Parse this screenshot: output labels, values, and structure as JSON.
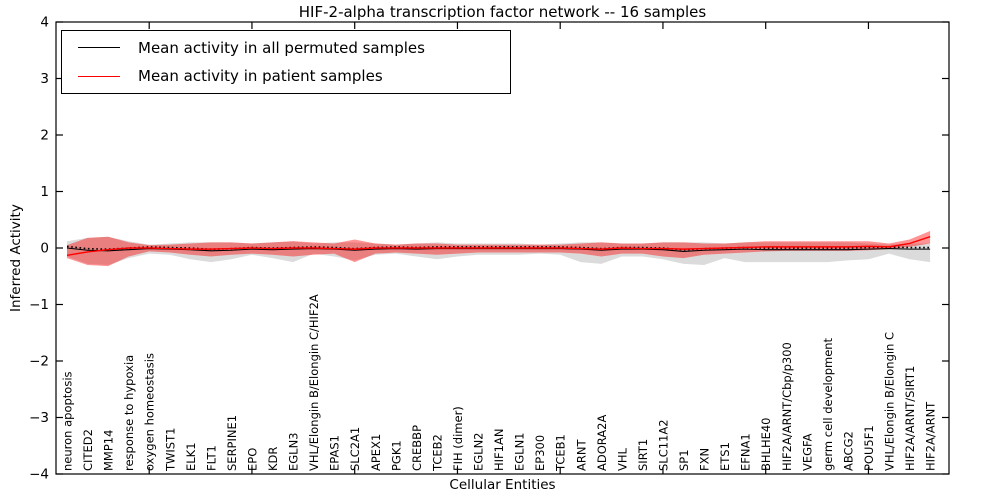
{
  "chart_data": {
    "type": "line",
    "title": "HIF-2-alpha transcription factor network -- 16 samples",
    "xlabel": "Cellular Entities",
    "ylabel": "Inferred Activity",
    "ylim": [
      -4,
      4
    ],
    "yticks": [
      -4,
      -3,
      -2,
      -1,
      0,
      1,
      2,
      3,
      4
    ],
    "grid": false,
    "legend_position": "upper left",
    "categories": [
      "neuron apoptosis",
      "CITED2",
      "MMP14",
      "response to hypoxia",
      "oxygen homeostasis",
      "TWIST1",
      "ELK1",
      "FLT1",
      "SERPINE1",
      "EPO",
      "KDR",
      "EGLN3",
      "VHL/Elongin B/Elongin C/HIF2A",
      "EPAS1",
      "SLC2A1",
      "APEX1",
      "PGK1",
      "CREBBP",
      "TCEB2",
      "FIH (dimer)",
      "EGLN2",
      "HIF1AN",
      "EGLN1",
      "EP300",
      "TCEB1",
      "ARNT",
      "ADORA2A",
      "VHL",
      "SIRT1",
      "SLC11A2",
      "SP1",
      "FXN",
      "ETS1",
      "EFNA1",
      "BHLHE40",
      "HIF2A/ARNT/Cbp/p300",
      "VEGFA",
      "germ cell development",
      "ABCG2",
      "POU5F1",
      "VHL/Elongin B/Elongin C",
      "HIF2A/ARNT/SIRT1",
      "HIF2A/ARNT"
    ],
    "series": [
      {
        "name": "Mean activity in all permuted samples",
        "color": "#000000",
        "line_style": "solid",
        "values": [
          0.0,
          -0.04,
          -0.05,
          -0.03,
          -0.01,
          -0.02,
          -0.03,
          -0.05,
          -0.04,
          -0.02,
          -0.03,
          -0.02,
          -0.01,
          -0.02,
          -0.04,
          -0.02,
          -0.01,
          -0.02,
          -0.01,
          -0.01,
          -0.01,
          -0.01,
          -0.01,
          -0.01,
          -0.01,
          -0.02,
          -0.04,
          -0.02,
          -0.02,
          -0.03,
          -0.06,
          -0.04,
          -0.03,
          -0.02,
          -0.03,
          -0.03,
          -0.03,
          -0.03,
          -0.03,
          -0.02,
          -0.01,
          -0.02,
          -0.02
        ],
        "band_high": [
          0.12,
          0.18,
          0.2,
          0.12,
          0.06,
          0.08,
          0.1,
          0.1,
          0.1,
          0.08,
          0.1,
          0.12,
          0.08,
          0.1,
          0.1,
          0.08,
          0.06,
          0.08,
          0.1,
          0.08,
          0.08,
          0.08,
          0.08,
          0.06,
          0.08,
          0.1,
          0.1,
          0.08,
          0.08,
          0.1,
          0.1,
          0.1,
          0.08,
          0.1,
          0.1,
          0.1,
          0.1,
          0.1,
          0.1,
          0.08,
          0.06,
          0.08,
          0.08
        ],
        "band_low": [
          -0.15,
          -0.28,
          -0.3,
          -0.18,
          -0.1,
          -0.12,
          -0.2,
          -0.25,
          -0.2,
          -0.12,
          -0.18,
          -0.25,
          -0.1,
          -0.15,
          -0.22,
          -0.12,
          -0.1,
          -0.15,
          -0.2,
          -0.15,
          -0.12,
          -0.12,
          -0.12,
          -0.1,
          -0.12,
          -0.25,
          -0.28,
          -0.15,
          -0.15,
          -0.2,
          -0.28,
          -0.3,
          -0.18,
          -0.25,
          -0.25,
          -0.25,
          -0.25,
          -0.25,
          -0.22,
          -0.2,
          -0.1,
          -0.2,
          -0.25
        ],
        "band_fill": "rgba(0,0,0,0.14)"
      },
      {
        "name": "Mean activity in patient samples",
        "color": "#ff0000",
        "line_style": "solid",
        "values": [
          -0.13,
          -0.07,
          -0.03,
          0.0,
          0.0,
          -0.01,
          -0.02,
          -0.02,
          -0.01,
          0.0,
          -0.01,
          0.0,
          0.0,
          -0.01,
          -0.02,
          0.0,
          0.0,
          0.0,
          0.0,
          0.0,
          0.0,
          0.0,
          0.0,
          0.0,
          0.0,
          -0.01,
          -0.02,
          0.0,
          -0.01,
          -0.01,
          -0.02,
          -0.01,
          0.0,
          0.01,
          0.02,
          0.02,
          0.02,
          0.02,
          0.02,
          0.03,
          0.02,
          0.08,
          0.2
        ],
        "band_high": [
          0.05,
          0.18,
          0.2,
          0.1,
          0.05,
          0.06,
          0.08,
          0.1,
          0.1,
          0.08,
          0.1,
          0.12,
          0.1,
          0.08,
          0.15,
          0.08,
          0.06,
          0.08,
          0.08,
          0.06,
          0.06,
          0.06,
          0.06,
          0.06,
          0.06,
          0.08,
          0.1,
          0.08,
          0.08,
          0.1,
          0.1,
          0.08,
          0.08,
          0.1,
          0.12,
          0.12,
          0.12,
          0.12,
          0.12,
          0.12,
          0.08,
          0.15,
          0.3
        ],
        "band_low": [
          -0.18,
          -0.3,
          -0.32,
          -0.15,
          -0.06,
          -0.08,
          -0.12,
          -0.15,
          -0.12,
          -0.1,
          -0.12,
          -0.15,
          -0.12,
          -0.1,
          -0.25,
          -0.1,
          -0.08,
          -0.1,
          -0.12,
          -0.1,
          -0.08,
          -0.08,
          -0.08,
          -0.08,
          -0.08,
          -0.1,
          -0.15,
          -0.1,
          -0.1,
          -0.15,
          -0.18,
          -0.12,
          -0.1,
          -0.08,
          -0.06,
          -0.05,
          -0.05,
          -0.05,
          -0.05,
          -0.04,
          -0.02,
          0.02,
          0.08
        ],
        "band_fill": "rgba(255,0,0,0.42)"
      }
    ],
    "colors": {
      "spine": "#000000",
      "background": "#ffffff",
      "permuted_line": "#000000",
      "patient_line": "#ff0000"
    }
  }
}
